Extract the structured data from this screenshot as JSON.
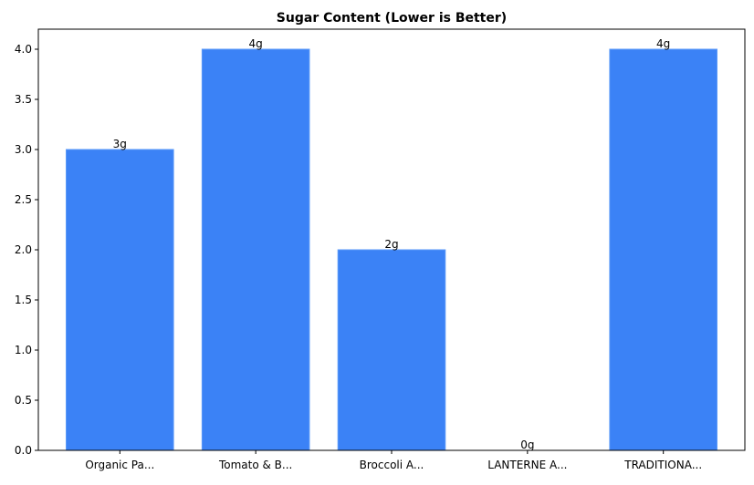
{
  "chart_data": {
    "type": "bar",
    "title": "Sugar Content (Lower is Better)",
    "xlabel": "",
    "ylabel": "",
    "categories": [
      "Organic Pa...",
      "Tomato & B...",
      "Broccoli A...",
      "LANTERNE A...",
      "TRADITIONA..."
    ],
    "values": [
      3,
      4,
      2,
      0,
      4
    ],
    "data_labels": [
      "3g",
      "4g",
      "2g",
      "0g",
      "4g"
    ],
    "ylim": [
      0,
      4.2
    ],
    "yticks": [
      "0.0",
      "0.5",
      "1.0",
      "1.5",
      "2.0",
      "2.5",
      "3.0",
      "3.5",
      "4.0"
    ],
    "grid": false,
    "bar_color": "#3b82f6"
  }
}
